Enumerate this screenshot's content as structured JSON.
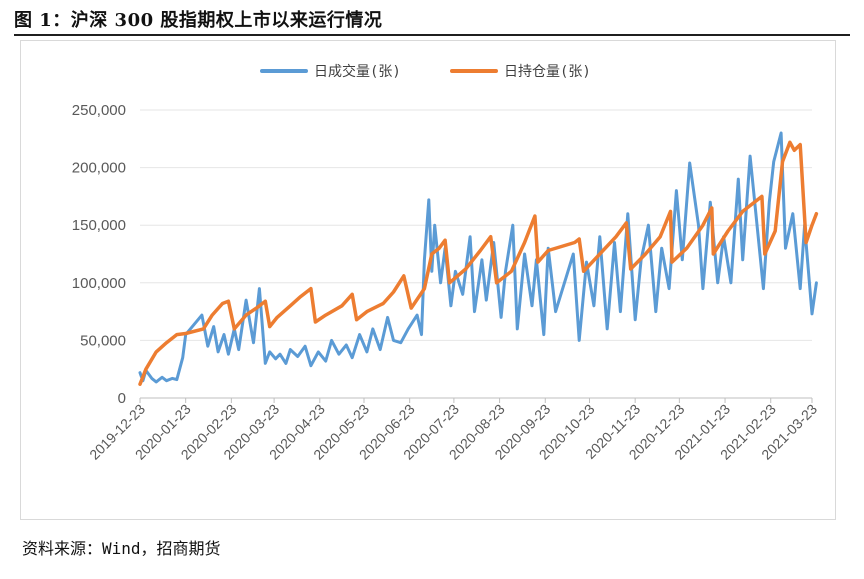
{
  "figure": {
    "title": "图 1：沪深 300 股指期权上市以来运行情况",
    "source": "资料来源：Wind，招商期货"
  },
  "chart_data": {
    "type": "line",
    "xlabel": "",
    "ylabel": "",
    "ylim": [
      0,
      250000
    ],
    "yticks": [
      "0",
      "50,000",
      "100,000",
      "150,000",
      "200,000",
      "250,000"
    ],
    "ytick_values": [
      0,
      50000,
      100000,
      150000,
      200000,
      250000
    ],
    "xticks": [
      "2019-12-23",
      "2020-01-23",
      "2020-02-23",
      "2020-03-23",
      "2020-04-23",
      "2020-05-23",
      "2020-06-23",
      "2020-07-23",
      "2020-08-23",
      "2020-09-23",
      "2020-10-23",
      "2020-11-23",
      "2020-12-23",
      "2021-01-23",
      "2021-02-23",
      "2021-03-23"
    ],
    "grid": "horizontal",
    "legend_position": "top-center",
    "colors": {
      "volume": "#5b9bd5",
      "open_interest": "#ed7d31"
    },
    "series": [
      {
        "name": "日成交量(张)",
        "key": "volume",
        "x": [
          "2019-12-23",
          "2019-12-25",
          "2019-12-27",
          "2019-12-31",
          "2020-01-03",
          "2020-01-07",
          "2020-01-10",
          "2020-01-14",
          "2020-01-17",
          "2020-01-21",
          "2020-01-23",
          "2020-02-03",
          "2020-02-07",
          "2020-02-11",
          "2020-02-14",
          "2020-02-18",
          "2020-02-21",
          "2020-02-25",
          "2020-02-28",
          "2020-03-04",
          "2020-03-09",
          "2020-03-13",
          "2020-03-17",
          "2020-03-20",
          "2020-03-24",
          "2020-03-27",
          "2020-03-31",
          "2020-04-03",
          "2020-04-08",
          "2020-04-13",
          "2020-04-17",
          "2020-04-22",
          "2020-04-27",
          "2020-05-01",
          "2020-05-06",
          "2020-05-11",
          "2020-05-15",
          "2020-05-20",
          "2020-05-25",
          "2020-05-29",
          "2020-06-03",
          "2020-06-08",
          "2020-06-12",
          "2020-06-17",
          "2020-06-22",
          "2020-06-28",
          "2020-07-01",
          "2020-07-03",
          "2020-07-06",
          "2020-07-08",
          "2020-07-10",
          "2020-07-14",
          "2020-07-17",
          "2020-07-21",
          "2020-07-24",
          "2020-07-29",
          "2020-08-03",
          "2020-08-06",
          "2020-08-11",
          "2020-08-14",
          "2020-08-19",
          "2020-08-24",
          "2020-08-27",
          "2020-09-01",
          "2020-09-04",
          "2020-09-09",
          "2020-09-14",
          "2020-09-17",
          "2020-09-22",
          "2020-09-25",
          "2020-09-30",
          "2020-10-12",
          "2020-10-16",
          "2020-10-21",
          "2020-10-26",
          "2020-10-30",
          "2020-11-04",
          "2020-11-09",
          "2020-11-13",
          "2020-11-18",
          "2020-11-23",
          "2020-11-27",
          "2020-12-02",
          "2020-12-07",
          "2020-12-11",
          "2020-12-16",
          "2020-12-21",
          "2020-12-25",
          "2020-12-30",
          "2021-01-05",
          "2021-01-08",
          "2021-01-13",
          "2021-01-18",
          "2021-01-22",
          "2021-01-27",
          "2021-02-01",
          "2021-02-04",
          "2021-02-09",
          "2021-02-18",
          "2021-02-22",
          "2021-02-25",
          "2021-03-02",
          "2021-03-05",
          "2021-03-10",
          "2021-03-15",
          "2021-03-18",
          "2021-03-23",
          "2021-03-26"
        ],
        "values": [
          22000,
          15000,
          24000,
          17000,
          14000,
          18000,
          15000,
          17000,
          16000,
          35000,
          55000,
          72000,
          45000,
          62000,
          40000,
          55000,
          38000,
          60000,
          42000,
          85000,
          48000,
          95000,
          30000,
          40000,
          34000,
          38000,
          30000,
          42000,
          36000,
          45000,
          28000,
          40000,
          32000,
          50000,
          38000,
          46000,
          35000,
          55000,
          40000,
          60000,
          42000,
          70000,
          50000,
          48000,
          60000,
          72000,
          55000,
          120000,
          172000,
          110000,
          150000,
          100000,
          130000,
          80000,
          110000,
          90000,
          140000,
          75000,
          120000,
          85000,
          135000,
          70000,
          110000,
          150000,
          60000,
          125000,
          80000,
          120000,
          55000,
          130000,
          75000,
          125000,
          50000,
          118000,
          80000,
          140000,
          60000,
          135000,
          75000,
          160000,
          68000,
          120000,
          150000,
          75000,
          130000,
          95000,
          180000,
          120000,
          204000,
          150000,
          95000,
          170000,
          100000,
          140000,
          100000,
          190000,
          120000,
          210000,
          95000,
          170000,
          205000,
          230000,
          130000,
          160000,
          95000,
          150000,
          73000,
          100000
        ],
        "note": ""
      },
      {
        "name": "日持仓量(张)",
        "key": "open_interest",
        "x": [
          "2019-12-23",
          "2019-12-27",
          "2020-01-03",
          "2020-01-10",
          "2020-01-17",
          "2020-01-23",
          "2020-02-04",
          "2020-02-10",
          "2020-02-17",
          "2020-02-21",
          "2020-02-25",
          "2020-03-04",
          "2020-03-11",
          "2020-03-17",
          "2020-03-20",
          "2020-03-25",
          "2020-04-03",
          "2020-04-10",
          "2020-04-17",
          "2020-04-20",
          "2020-04-27",
          "2020-05-08",
          "2020-05-15",
          "2020-05-18",
          "2020-05-25",
          "2020-06-05",
          "2020-06-12",
          "2020-06-19",
          "2020-06-24",
          "2020-07-03",
          "2020-07-08",
          "2020-07-13",
          "2020-07-17",
          "2020-07-20",
          "2020-07-31",
          "2020-08-10",
          "2020-08-17",
          "2020-08-21",
          "2020-08-31",
          "2020-09-09",
          "2020-09-16",
          "2020-09-18",
          "2020-09-25",
          "2020-10-13",
          "2020-10-16",
          "2020-10-19",
          "2020-10-30",
          "2020-11-10",
          "2020-11-17",
          "2020-11-20",
          "2020-11-30",
          "2020-12-10",
          "2020-12-17",
          "2020-12-18",
          "2020-12-28",
          "2021-01-08",
          "2021-01-14",
          "2021-01-15",
          "2021-01-25",
          "2021-02-04",
          "2021-02-17",
          "2021-02-19",
          "2021-02-26",
          "2021-03-03",
          "2021-03-08",
          "2021-03-11",
          "2021-03-15",
          "2021-03-19",
          "2021-03-23",
          "2021-03-26"
        ],
        "values": [
          12000,
          25000,
          40000,
          48000,
          55000,
          56000,
          60000,
          72000,
          82000,
          84000,
          60000,
          72000,
          78000,
          84000,
          62000,
          70000,
          80000,
          88000,
          95000,
          66000,
          72000,
          80000,
          90000,
          68000,
          75000,
          82000,
          92000,
          106000,
          78000,
          95000,
          125000,
          130000,
          137000,
          100000,
          112000,
          128000,
          140000,
          100000,
          110000,
          135000,
          158000,
          118000,
          128000,
          135000,
          138000,
          110000,
          125000,
          140000,
          152000,
          112000,
          125000,
          140000,
          162000,
          118000,
          130000,
          150000,
          165000,
          125000,
          145000,
          162000,
          175000,
          125000,
          145000,
          205000,
          222000,
          215000,
          220000,
          135000,
          150000,
          160000
        ]
      }
    ]
  }
}
